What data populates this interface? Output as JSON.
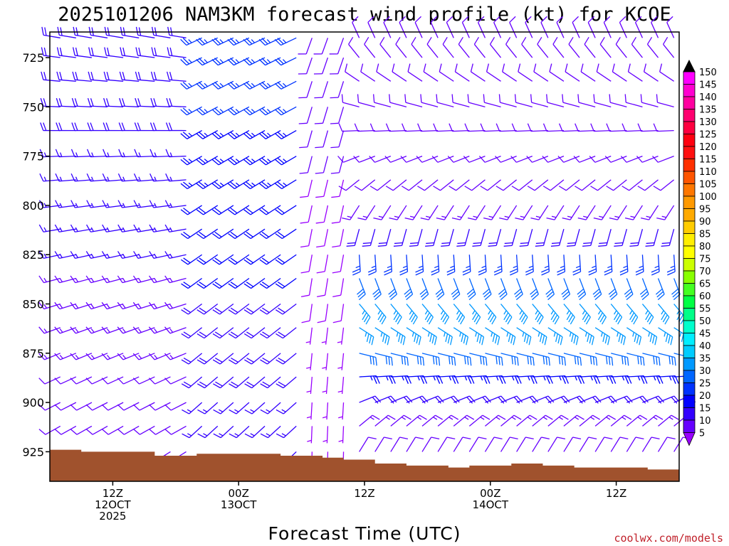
{
  "chart_data": {
    "type": "wind-barb-profile",
    "title": "2025101206 NAM3KM forecast wind profile (kt) for KCOE",
    "xlabel": "Forecast Time (UTC)",
    "credit": "coolwx.com/models",
    "ylabel_ticks": [
      "725",
      "750",
      "775",
      "800",
      "825",
      "850",
      "875",
      "900",
      "925"
    ],
    "y_range_hpa": [
      712,
      940
    ],
    "x_range_hours": [
      6,
      66
    ],
    "x_ticks": [
      {
        "hour": 12,
        "lines": [
          "12Z",
          "12OCT",
          "2025"
        ]
      },
      {
        "hour": 24,
        "lines": [
          "00Z",
          "13OCT"
        ]
      },
      {
        "hour": 36,
        "lines": [
          "12Z"
        ]
      },
      {
        "hour": 48,
        "lines": [
          "00Z",
          "14OCT"
        ]
      },
      {
        "hour": 60,
        "lines": [
          "12Z"
        ]
      }
    ],
    "levels_hpa": [
      715,
      725,
      737,
      750,
      762,
      775,
      787,
      800,
      812,
      825,
      837,
      850,
      862,
      875,
      887,
      900,
      912,
      925
    ],
    "times_hours": [
      7,
      8.5,
      10,
      11.5,
      13,
      14.5,
      16,
      17.5,
      19,
      20.5,
      22,
      23.5,
      25,
      26.5,
      28,
      29.5,
      31,
      32.5,
      34,
      35.5,
      37,
      38.5,
      40,
      41.5,
      43,
      44.5,
      46,
      47.5,
      49,
      50.5,
      52,
      53.5,
      55,
      56.5,
      58,
      59.5,
      61,
      62.5,
      64,
      65.5
    ],
    "wind_phases": [
      {
        "hours": [
          6,
          20
        ],
        "from_deg": [
          280,
          235
        ],
        "speed_kt": [
          10,
          20
        ]
      },
      {
        "hours": [
          20,
          30
        ],
        "from_deg": [
          245,
          225
        ],
        "speed_kt": [
          15,
          27
        ]
      },
      {
        "hours": [
          30,
          34
        ],
        "from_deg": [
          200,
          180
        ],
        "speed_kt": [
          5,
          12
        ]
      },
      {
        "hours": [
          34,
          66
        ],
        "from_deg": [
          340,
          10
        ],
        "speed_kt": [
          10,
          37
        ]
      }
    ],
    "terrain_top_hpa": [
      [
        6,
        924
      ],
      [
        9,
        925
      ],
      [
        12,
        925
      ],
      [
        16,
        927
      ],
      [
        20,
        926
      ],
      [
        24,
        926
      ],
      [
        28,
        927
      ],
      [
        32,
        928
      ],
      [
        34,
        929
      ],
      [
        37,
        931
      ],
      [
        40,
        932
      ],
      [
        44,
        933
      ],
      [
        46,
        932
      ],
      [
        50,
        931
      ],
      [
        53,
        932
      ],
      [
        56,
        933
      ],
      [
        60,
        933
      ],
      [
        63,
        934
      ],
      [
        66,
        933
      ]
    ],
    "colorbar": {
      "labels": [
        "150",
        "145",
        "140",
        "135",
        "130",
        "125",
        "120",
        "115",
        "110",
        "105",
        "100",
        "95",
        "90",
        "85",
        "80",
        "75",
        "70",
        "65",
        "60",
        "55",
        "50",
        "45",
        "40",
        "35",
        "30",
        "25",
        "20",
        "15",
        "10",
        "5"
      ],
      "colors": [
        "#ff00ff",
        "#ff00d0",
        "#ff00a0",
        "#ff0070",
        "#ff0040",
        "#ff0010",
        "#ff1010",
        "#ff3000",
        "#ff5500",
        "#ff7700",
        "#ff9900",
        "#ffaa00",
        "#ffcc00",
        "#ffee00",
        "#ffff00",
        "#ccff00",
        "#88ff00",
        "#44ff22",
        "#00ff44",
        "#00ff88",
        "#00ffcc",
        "#00eeff",
        "#00ccff",
        "#0099ff",
        "#0066ff",
        "#0033ff",
        "#0000ff",
        "#3300ff",
        "#6600ff",
        "#9900ff"
      ],
      "top_arrow_color": "#000000"
    },
    "terrain_color": "#a0522d",
    "barb_color_speed_kt": [
      5,
      10,
      15,
      20,
      25,
      30,
      35,
      40
    ],
    "barb_colors": [
      "#9900ff",
      "#6600ff",
      "#3300ff",
      "#0000ff",
      "#0033ff",
      "#0066ff",
      "#0099ff",
      "#00ccff"
    ]
  }
}
